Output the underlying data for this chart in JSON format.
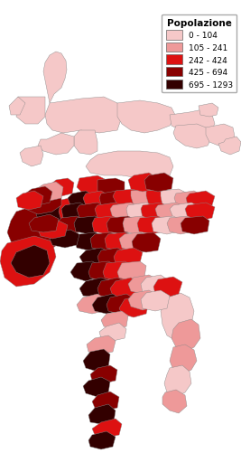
{
  "legend_title": "Popolazione",
  "legend_labels": [
    "0 - 104",
    "105 - 241",
    "242 - 424",
    "425 - 694",
    "695 - 1293"
  ],
  "legend_colors": [
    "#f5c8c8",
    "#ee9999",
    "#dd1111",
    "#880000",
    "#330000"
  ],
  "background_color": "#ffffff",
  "figsize": [
    2.67,
    5.02
  ],
  "dpi": 100,
  "edge_color": "#888888",
  "edge_width": 0.3,
  "legend_fontsize": 6.5,
  "legend_title_fontsize": 7.5,
  "xlim": [
    0,
    267
  ],
  "ylim": [
    0,
    502
  ]
}
